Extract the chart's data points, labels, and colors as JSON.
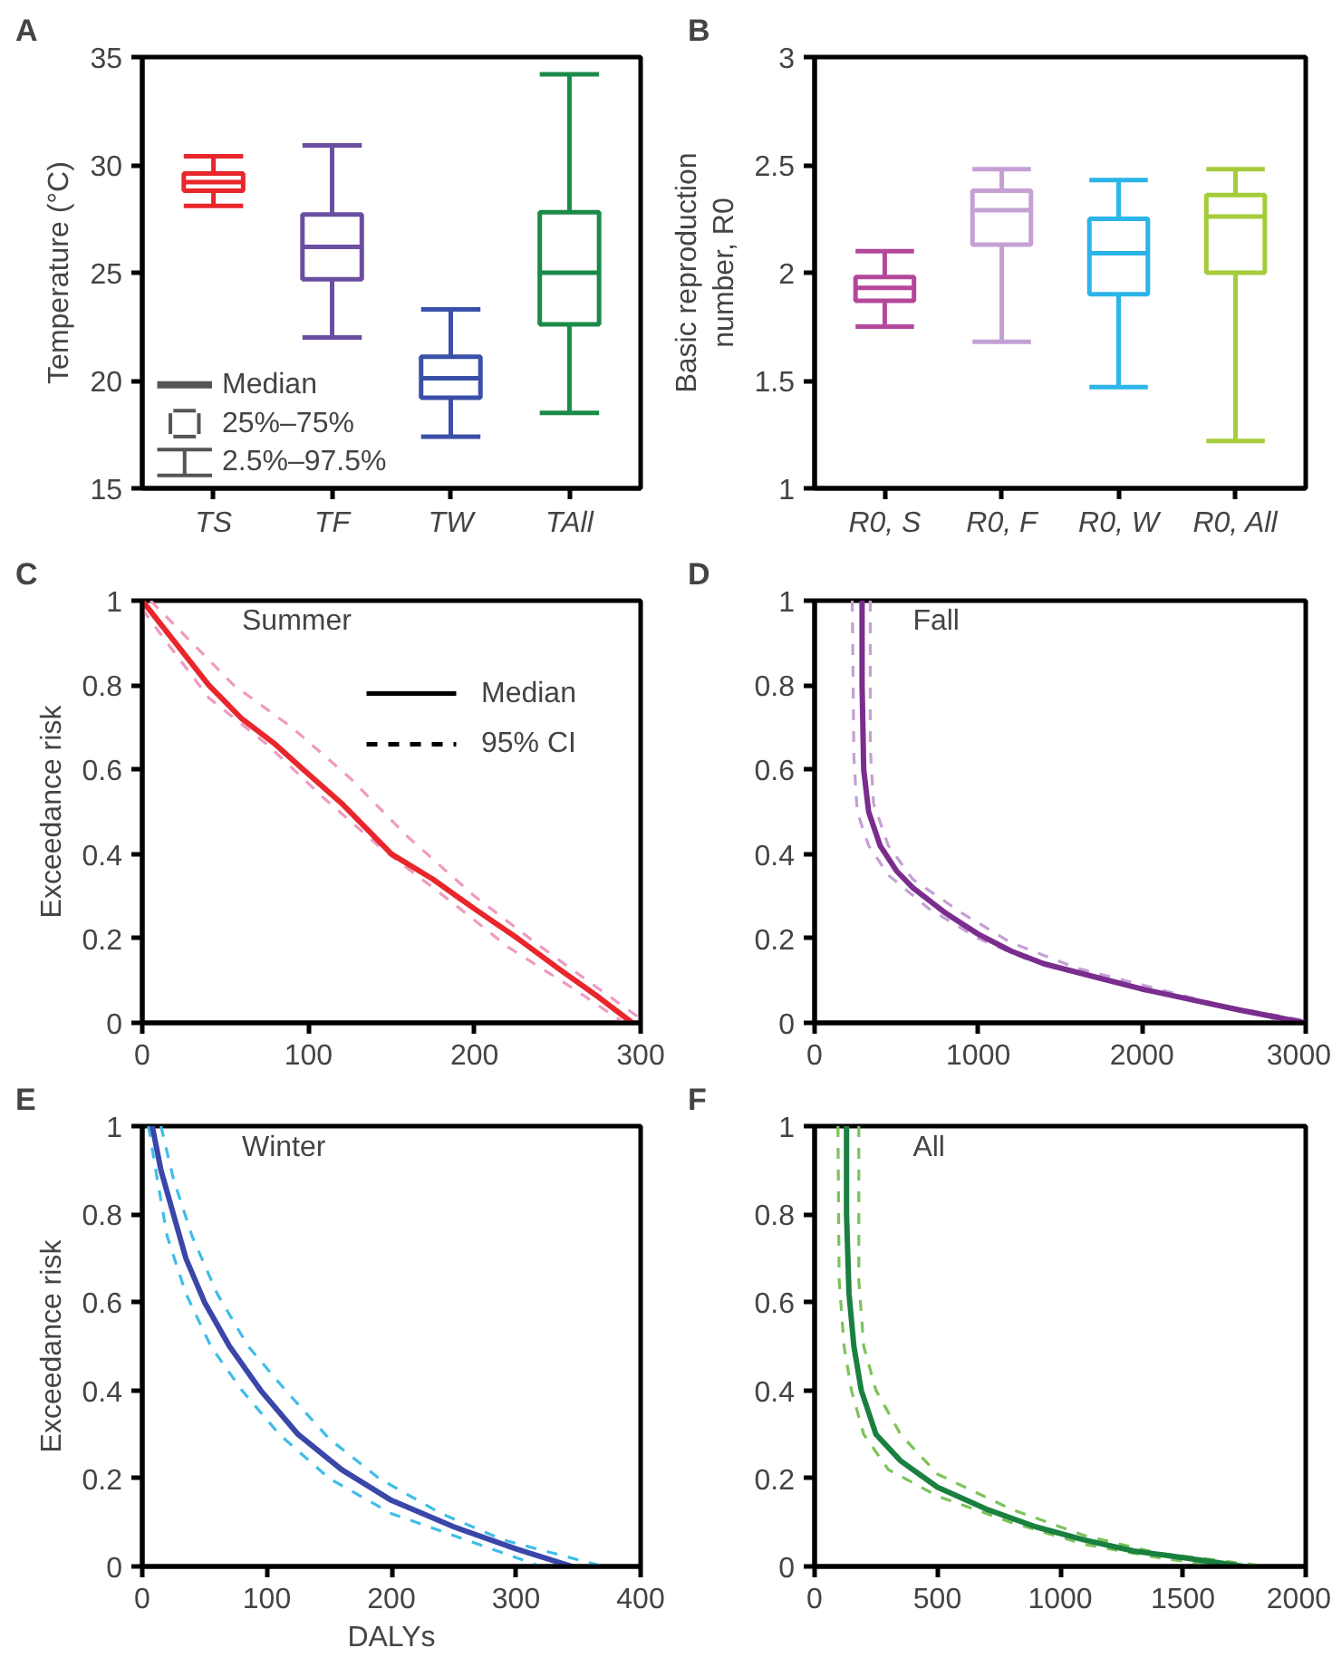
{
  "chart_data": [
    {
      "type": "box",
      "title": "A",
      "ylabel": "Temperature (°C)",
      "categories": [
        "TS",
        "TF",
        "TW",
        "TAll"
      ],
      "colors": [
        "#e8262b",
        "#6a4ea0",
        "#3a4fa8",
        "#1a8a48"
      ],
      "boxes": [
        {
          "low": 28.1,
          "q1": 28.8,
          "median": 29.2,
          "q3": 29.6,
          "high": 30.4
        },
        {
          "low": 22.0,
          "q1": 24.7,
          "median": 26.2,
          "q3": 27.7,
          "high": 30.9
        },
        {
          "low": 17.4,
          "q1": 19.2,
          "median": 20.1,
          "q3": 21.1,
          "high": 23.3
        },
        {
          "low": 18.5,
          "q1": 22.6,
          "median": 25.0,
          "q3": 27.8,
          "high": 34.2
        }
      ],
      "ylim": [
        15,
        35
      ],
      "yticks": [
        15,
        20,
        25,
        30,
        35
      ],
      "annotations": [
        "Median",
        "25%–75%",
        "2.5%–97.5%"
      ]
    },
    {
      "type": "box",
      "title": "B",
      "ylabel": "Basic reproduction\nnumber, R0",
      "categories": [
        "R0, S",
        "R0, F",
        "R0, W",
        "R0, All"
      ],
      "colors": [
        "#b5479b",
        "#c4a0d4",
        "#2bb5e8",
        "#a5cc3a"
      ],
      "boxes": [
        {
          "low": 1.75,
          "q1": 1.87,
          "median": 1.93,
          "q3": 1.98,
          "high": 2.1
        },
        {
          "low": 1.68,
          "q1": 2.13,
          "median": 2.29,
          "q3": 2.38,
          "high": 2.48
        },
        {
          "low": 1.47,
          "q1": 1.9,
          "median": 2.09,
          "q3": 2.25,
          "high": 2.43
        },
        {
          "low": 1.22,
          "q1": 2.0,
          "median": 2.26,
          "q3": 2.36,
          "high": 2.48
        }
      ],
      "ylim": [
        1,
        3
      ],
      "yticks": [
        1,
        1.5,
        2,
        2.5,
        3
      ]
    },
    {
      "type": "line",
      "title": "C",
      "subtitle": "Summer",
      "ylabel": "Exceedance risk",
      "xlim": [
        0,
        300
      ],
      "xticks": [
        0,
        100,
        200,
        300
      ],
      "ylim": [
        0,
        1
      ],
      "yticks": [
        0,
        0.2,
        0.4,
        0.6,
        0.8,
        1
      ],
      "annotations": [
        "Median",
        "95% CI"
      ],
      "series": [
        {
          "color": "#f09ac0",
          "line_style": "dashed",
          "x": [
            5,
            25,
            55,
            90,
            125,
            160,
            200,
            240,
            275,
            300
          ],
          "values": [
            1,
            0.92,
            0.8,
            0.7,
            0.58,
            0.44,
            0.3,
            0.18,
            0.08,
            0.01
          ]
        },
        {
          "color": "#f09ac0",
          "line_style": "dashed",
          "x": [
            0,
            15,
            40,
            75,
            110,
            145,
            185,
            220,
            260,
            290
          ],
          "values": [
            0.98,
            0.9,
            0.77,
            0.66,
            0.53,
            0.41,
            0.29,
            0.18,
            0.08,
            0
          ]
        },
        {
          "color": "#e8262b",
          "line_style": "solid",
          "x": [
            0,
            10,
            20,
            40,
            60,
            80,
            97,
            120,
            150,
            175,
            200,
            226,
            250,
            275,
            295
          ],
          "values": [
            1,
            0.95,
            0.9,
            0.8,
            0.72,
            0.66,
            0.6,
            0.52,
            0.4,
            0.34,
            0.27,
            0.2,
            0.13,
            0.06,
            0
          ]
        }
      ]
    },
    {
      "type": "line",
      "title": "D",
      "subtitle": "Fall",
      "xlim": [
        0,
        3000
      ],
      "xticks": [
        0,
        1000,
        2000,
        3000
      ],
      "ylim": [
        0,
        1
      ],
      "yticks": [
        0,
        0.2,
        0.4,
        0.6,
        0.8,
        1
      ],
      "series": [
        {
          "color": "#c4a0d4",
          "line_style": "dashed",
          "x": [
            340,
            340,
            360,
            450,
            600,
            900,
            1200,
            1600,
            2000,
            2500,
            3000
          ],
          "values": [
            1,
            0.65,
            0.52,
            0.42,
            0.34,
            0.26,
            0.19,
            0.13,
            0.09,
            0.04,
            0.005
          ]
        },
        {
          "color": "#c4a0d4",
          "line_style": "dashed",
          "x": [
            230,
            240,
            260,
            330,
            450,
            700,
            1000,
            1300,
            1700,
            2100,
            2600,
            2900
          ],
          "values": [
            1,
            0.63,
            0.5,
            0.42,
            0.35,
            0.27,
            0.2,
            0.15,
            0.11,
            0.07,
            0.03,
            0
          ]
        },
        {
          "color": "#7b2d8e",
          "line_style": "solid",
          "x": [
            290,
            290,
            300,
            330,
            400,
            500,
            600,
            800,
            1000,
            1200,
            1400,
            1700,
            2000,
            2300,
            2600,
            2800,
            3000
          ],
          "values": [
            1,
            0.8,
            0.6,
            0.5,
            0.42,
            0.36,
            0.32,
            0.26,
            0.21,
            0.17,
            0.14,
            0.11,
            0.08,
            0.055,
            0.03,
            0.015,
            0
          ]
        }
      ]
    },
    {
      "type": "line",
      "title": "E",
      "subtitle": "Winter",
      "ylabel": "Exceedance risk",
      "xlabel": "DALYs",
      "xlim": [
        0,
        400
      ],
      "xticks": [
        0,
        100,
        200,
        300,
        400
      ],
      "ylim": [
        0,
        1
      ],
      "yticks": [
        0,
        0.2,
        0.4,
        0.6,
        0.8,
        1
      ],
      "series": [
        {
          "color": "#3fbde8",
          "line_style": "dashed",
          "x": [
            15,
            25,
            40,
            60,
            85,
            115,
            150,
            190,
            240,
            290,
            370
          ],
          "values": [
            1,
            0.88,
            0.75,
            0.62,
            0.5,
            0.4,
            0.29,
            0.2,
            0.12,
            0.06,
            0
          ]
        },
        {
          "color": "#3fbde8",
          "line_style": "dashed",
          "x": [
            5,
            12,
            20,
            35,
            55,
            80,
            110,
            150,
            200,
            260,
            320
          ],
          "values": [
            1,
            0.88,
            0.75,
            0.62,
            0.5,
            0.4,
            0.3,
            0.2,
            0.12,
            0.06,
            0
          ]
        },
        {
          "color": "#3a46a8",
          "line_style": "solid",
          "x": [
            8,
            15,
            25,
            35,
            50,
            70,
            95,
            125,
            160,
            200,
            250,
            300,
            345
          ],
          "values": [
            1,
            0.9,
            0.8,
            0.7,
            0.6,
            0.5,
            0.4,
            0.3,
            0.22,
            0.15,
            0.09,
            0.04,
            0
          ]
        }
      ]
    },
    {
      "type": "line",
      "title": "F",
      "subtitle": "All",
      "xlim": [
        0,
        2000
      ],
      "xticks": [
        0,
        500,
        1000,
        1500,
        2000
      ],
      "ylim": [
        0,
        1
      ],
      "yticks": [
        0,
        0.2,
        0.4,
        0.6,
        0.8,
        1
      ],
      "series": [
        {
          "color": "#7cc35a",
          "line_style": "dashed",
          "x": [
            180,
            180,
            200,
            250,
            350,
            500,
            800,
            1100,
            1400,
            1850
          ],
          "values": [
            1,
            0.65,
            0.5,
            0.4,
            0.3,
            0.21,
            0.13,
            0.07,
            0.03,
            0
          ]
        },
        {
          "color": "#7cc35a",
          "line_style": "dashed",
          "x": [
            95,
            100,
            120,
            150,
            200,
            300,
            500,
            800,
            1100,
            1400,
            1650
          ],
          "values": [
            1,
            0.65,
            0.5,
            0.4,
            0.3,
            0.22,
            0.16,
            0.1,
            0.05,
            0.02,
            0
          ]
        },
        {
          "color": "#1a8040",
          "line_style": "solid",
          "x": [
            130,
            130,
            140,
            160,
            190,
            250,
            350,
            500,
            700,
            900,
            1100,
            1300,
            1500,
            1750
          ],
          "values": [
            1,
            0.8,
            0.62,
            0.5,
            0.4,
            0.3,
            0.24,
            0.18,
            0.13,
            0.09,
            0.06,
            0.035,
            0.02,
            0
          ]
        }
      ]
    }
  ]
}
